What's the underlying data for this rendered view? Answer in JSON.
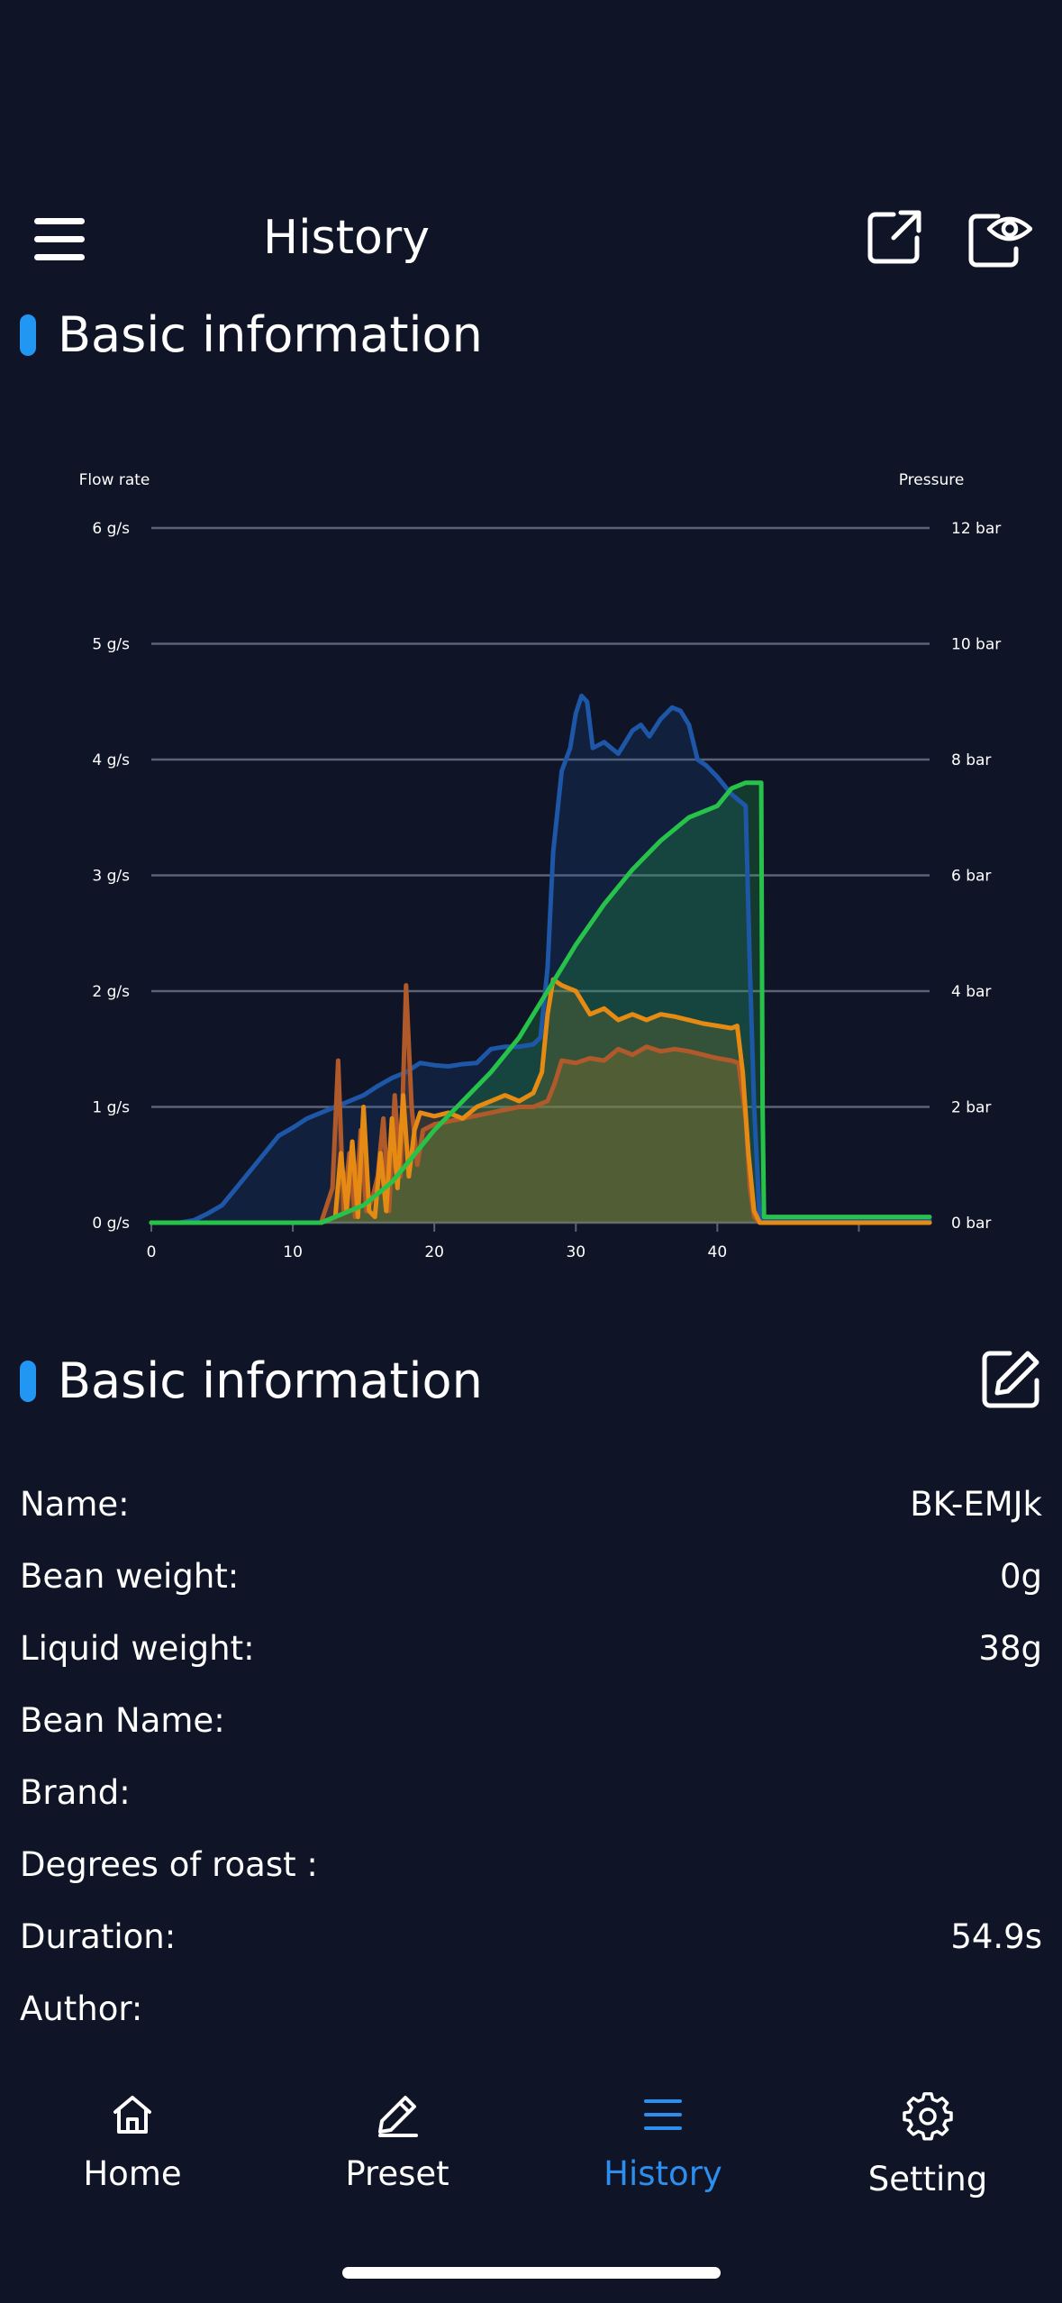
{
  "header": {
    "title": "History",
    "menu_icon": "menu-icon",
    "share_icon": "share-icon",
    "eye_icon": "eye-icon"
  },
  "sections": {
    "chart_section_title": "Basic information",
    "info_section_title": "Basic information",
    "edit_icon": "edit-icon"
  },
  "colors": {
    "background": "#0f1427",
    "accent": "#2196f3",
    "active_tab": "#2c8ff0",
    "flow_line": "#1e56a8",
    "pressure_line": "#27c24a",
    "weight_flow_line": "#e58a12",
    "brown_line": "#b0592a"
  },
  "chart_data": {
    "type": "line",
    "title": "",
    "left_axis_label": "Flow rate",
    "right_axis_label": "Pressure",
    "x_ticks": [
      "0",
      "10",
      "20",
      "30",
      "40"
    ],
    "left_ticks": [
      "0 g/s",
      "1 g/s",
      "2 g/s",
      "3 g/s",
      "4 g/s",
      "5 g/s",
      "6 g/s"
    ],
    "right_ticks": [
      "0 bar",
      "2 bar",
      "4 bar",
      "6 bar",
      "8 bar",
      "10 bar",
      "12 bar"
    ],
    "xlim": [
      0,
      55
    ],
    "ylim_left": [
      0,
      6
    ],
    "ylim_right": [
      0,
      12
    ],
    "grid": true,
    "series": [
      {
        "color": "#1e56a8",
        "axis": "left",
        "x": [
          0,
          2,
          3,
          4,
          5,
          6,
          7,
          8,
          9,
          10,
          11,
          12,
          13,
          14,
          15,
          16,
          17,
          18,
          19,
          20,
          21,
          22,
          23,
          24,
          25,
          26,
          27,
          27.5,
          28,
          28.4,
          29,
          29.6,
          30,
          30.4,
          30.8,
          31.2,
          32,
          33,
          34,
          34.6,
          35.2,
          36,
          36.8,
          37.4,
          38,
          38.6,
          39.2,
          40,
          41,
          42,
          42.3,
          42.6,
          43,
          44,
          50,
          55
        ],
        "y": [
          0,
          0,
          0.02,
          0.08,
          0.15,
          0.3,
          0.45,
          0.6,
          0.75,
          0.82,
          0.9,
          0.95,
          1.0,
          1.05,
          1.1,
          1.18,
          1.25,
          1.3,
          1.38,
          1.36,
          1.35,
          1.37,
          1.38,
          1.5,
          1.52,
          1.52,
          1.54,
          1.6,
          2.2,
          3.2,
          3.9,
          4.1,
          4.4,
          4.55,
          4.5,
          4.1,
          4.15,
          4.05,
          4.25,
          4.3,
          4.2,
          4.35,
          4.45,
          4.42,
          4.3,
          4.0,
          3.95,
          3.85,
          3.7,
          3.6,
          2.2,
          1.0,
          0.02,
          0.02,
          0.02,
          0.02
        ]
      },
      {
        "color": "#b0592a",
        "axis": "left",
        "x": [
          0,
          12,
          12.8,
          13.2,
          13.6,
          14,
          14.4,
          14.8,
          15.2,
          15.6,
          16,
          16.4,
          16.8,
          17.2,
          17.6,
          18,
          18.4,
          18.8,
          19.2,
          20,
          22,
          24,
          26,
          27,
          28,
          28.5,
          29,
          30,
          31,
          32,
          33,
          34,
          35,
          36,
          37,
          38,
          39,
          40,
          41,
          41.5,
          42,
          42.3,
          42.6,
          43,
          55
        ],
        "y": [
          0,
          0,
          0.3,
          1.4,
          0.1,
          0.6,
          0.05,
          0.8,
          0.1,
          0.2,
          0.4,
          0.9,
          0.1,
          1.1,
          0.4,
          2.05,
          1.0,
          0.5,
          0.8,
          0.85,
          0.9,
          0.95,
          1.0,
          1.0,
          1.05,
          1.2,
          1.4,
          1.38,
          1.42,
          1.4,
          1.5,
          1.45,
          1.52,
          1.48,
          1.5,
          1.48,
          1.45,
          1.42,
          1.4,
          1.38,
          0.9,
          0.3,
          0.05,
          0,
          0
        ]
      },
      {
        "color": "#e58a12",
        "axis": "left",
        "x": [
          0,
          12,
          13,
          13.4,
          13.8,
          14.2,
          14.6,
          15,
          15.4,
          15.8,
          16.2,
          16.6,
          17,
          17.4,
          17.8,
          18.2,
          18.6,
          19,
          20,
          21,
          22,
          23,
          24,
          25,
          26,
          27,
          27.6,
          28,
          28.4,
          29,
          30,
          31,
          32,
          33,
          34,
          35,
          36,
          37,
          38,
          39,
          40,
          41,
          41.4,
          41.8,
          42.2,
          42.6,
          43,
          55
        ],
        "y": [
          0,
          0,
          0.05,
          0.6,
          0.1,
          0.7,
          0.05,
          1.0,
          0.1,
          0.05,
          0.6,
          0.1,
          0.9,
          0.3,
          1.1,
          0.4,
          0.8,
          0.95,
          0.92,
          0.95,
          0.9,
          1.0,
          1.05,
          1.1,
          1.05,
          1.12,
          1.3,
          1.8,
          2.1,
          2.05,
          2.0,
          1.8,
          1.85,
          1.75,
          1.8,
          1.75,
          1.8,
          1.78,
          1.75,
          1.72,
          1.7,
          1.68,
          1.7,
          1.3,
          0.6,
          0.1,
          0,
          0
        ]
      },
      {
        "color": "#27c24a",
        "axis": "right",
        "x": [
          0,
          12,
          13,
          14,
          15,
          16,
          17,
          18,
          19,
          20,
          22,
          24,
          26,
          28,
          30,
          32,
          34,
          36,
          38,
          40,
          41,
          42,
          42.5,
          43.1,
          43.2,
          43.3,
          55
        ],
        "y": [
          0,
          0,
          0.1,
          0.2,
          0.3,
          0.5,
          0.7,
          1.0,
          1.3,
          1.6,
          2.1,
          2.6,
          3.2,
          4.0,
          4.8,
          5.5,
          6.1,
          6.6,
          7.0,
          7.2,
          7.5,
          7.6,
          7.6,
          7.6,
          2.0,
          0.1,
          0.1
        ]
      }
    ]
  },
  "info": [
    {
      "label": "Name:",
      "value": "BK-EMJk"
    },
    {
      "label": "Bean weight:",
      "value": "0g"
    },
    {
      "label": "Liquid weight:",
      "value": "38g"
    },
    {
      "label": "Bean Name:",
      "value": ""
    },
    {
      "label": "Brand:",
      "value": ""
    },
    {
      "label": "Degrees of roast :",
      "value": ""
    },
    {
      "label": "Duration:",
      "value": "54.9s"
    },
    {
      "label": "Author:",
      "value": ""
    }
  ],
  "tabbar": {
    "items": [
      {
        "label": "Home",
        "icon": "home-icon",
        "active": false
      },
      {
        "label": "Preset",
        "icon": "pencil-icon",
        "active": false
      },
      {
        "label": "History",
        "icon": "list-icon",
        "active": true
      },
      {
        "label": "Setting",
        "icon": "gear-icon",
        "active": false
      }
    ]
  }
}
